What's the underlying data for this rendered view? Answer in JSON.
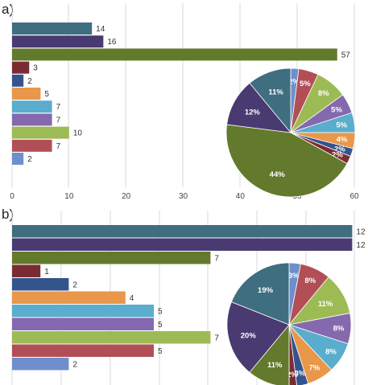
{
  "colors": {
    "teal": "#3e6e80",
    "indigo": "#4a3a72",
    "olive": "#637a2c",
    "maroon": "#7b2c32",
    "navy": "#34548c",
    "orange": "#e9974a",
    "sky": "#5aadcc",
    "purple": "#8469ae",
    "lime": "#9dbb55",
    "rose": "#b24f56",
    "blue": "#6e8fcc",
    "grid": "#d9d9d9"
  },
  "chart_data": [
    {
      "panel": "a)",
      "type": "bar",
      "orientation": "horizontal",
      "values": [
        14,
        16,
        57,
        3,
        2,
        5,
        7,
        7,
        10,
        7,
        2
      ],
      "bar_colors": [
        "teal",
        "indigo",
        "olive",
        "maroon",
        "navy",
        "orange",
        "sky",
        "purple",
        "lime",
        "rose",
        "blue"
      ],
      "xlim": [
        0,
        60
      ],
      "xticks": [
        0,
        10,
        20,
        30,
        40,
        50,
        60
      ],
      "grid": true,
      "inset_pie": {
        "type": "pie",
        "start": "top",
        "direction": "clockwise",
        "slices": [
          {
            "color": "blue",
            "value": 2,
            "label": "2%"
          },
          {
            "color": "rose",
            "value": 5,
            "label": "5%"
          },
          {
            "color": "lime",
            "value": 8,
            "label": "8%"
          },
          {
            "color": "purple",
            "value": 5,
            "label": "5%"
          },
          {
            "color": "sky",
            "value": 5,
            "label": "5%"
          },
          {
            "color": "orange",
            "value": 4,
            "label": "4%"
          },
          {
            "color": "navy",
            "value": 2,
            "label": "2%"
          },
          {
            "color": "maroon",
            "value": 2,
            "label": "2%"
          },
          {
            "color": "olive",
            "value": 44,
            "label": "44%"
          },
          {
            "color": "indigo",
            "value": 12,
            "label": "12%"
          },
          {
            "color": "teal",
            "value": 11,
            "label": "11%"
          }
        ]
      }
    },
    {
      "panel": "b)",
      "type": "bar",
      "orientation": "horizontal",
      "values": [
        12,
        12,
        7,
        1,
        2,
        4,
        5,
        5,
        7,
        5,
        2
      ],
      "bar_colors": [
        "teal",
        "indigo",
        "olive",
        "maroon",
        "navy",
        "orange",
        "sky",
        "purple",
        "lime",
        "rose",
        "blue"
      ],
      "xlim": [
        0,
        12.5
      ],
      "xticks": [],
      "grid": true,
      "inset_pie": {
        "type": "pie",
        "start": "top",
        "direction": "clockwise",
        "slices": [
          {
            "color": "blue",
            "value": 3,
            "label": "3%"
          },
          {
            "color": "rose",
            "value": 8,
            "label": "8%"
          },
          {
            "color": "lime",
            "value": 11,
            "label": "11%"
          },
          {
            "color": "purple",
            "value": 8,
            "label": "8%"
          },
          {
            "color": "sky",
            "value": 8,
            "label": "8%"
          },
          {
            "color": "orange",
            "value": 7,
            "label": "7%"
          },
          {
            "color": "navy",
            "value": 3,
            "label": "3%"
          },
          {
            "color": "maroon",
            "value": 2,
            "label": "2%"
          },
          {
            "color": "olive",
            "value": 11,
            "label": "11%"
          },
          {
            "color": "indigo",
            "value": 20,
            "label": "20%"
          },
          {
            "color": "teal",
            "value": 19,
            "label": "19%"
          }
        ]
      }
    }
  ]
}
